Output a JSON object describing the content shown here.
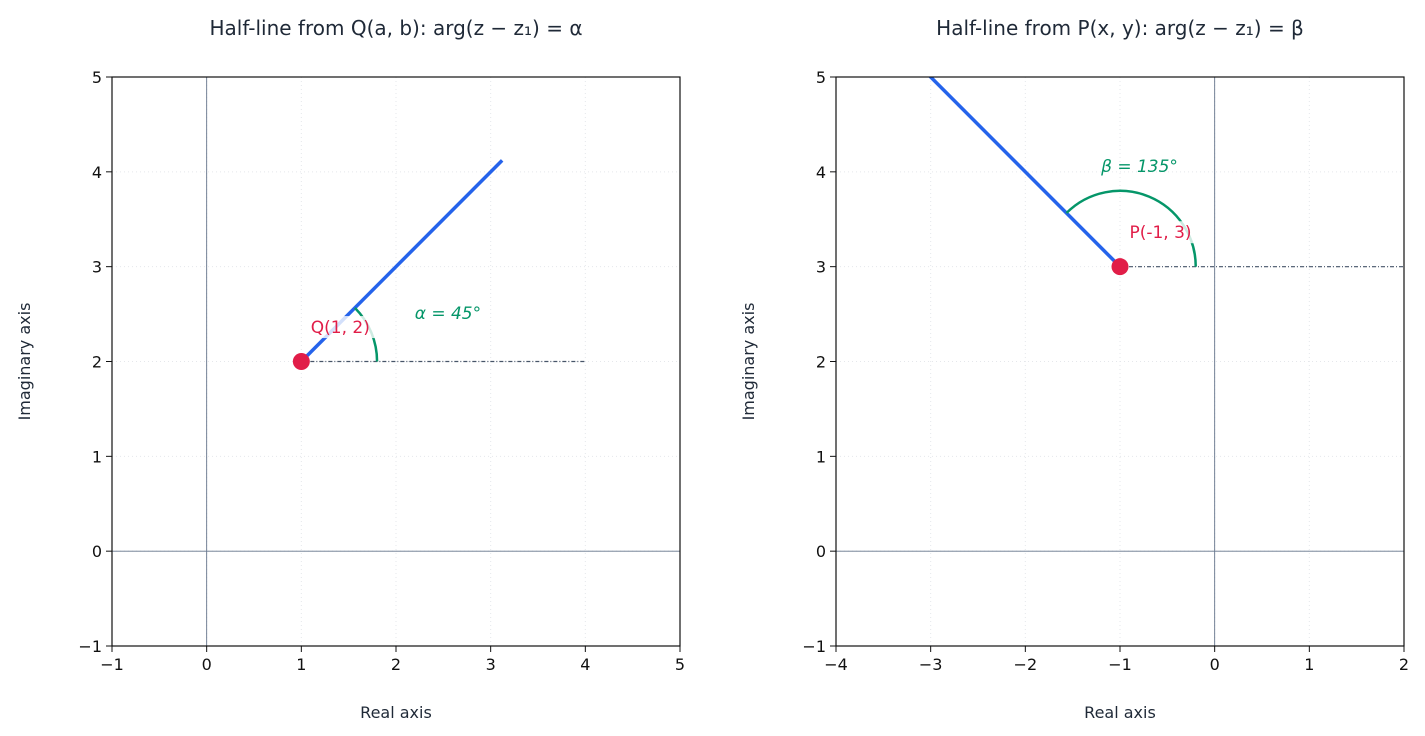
{
  "colors": {
    "ray": "#2563eb",
    "point": "#e11d48",
    "angle": "#059669",
    "ref": "#475569",
    "axis": "#64748b",
    "title": "#1f2937"
  },
  "chart_data": [
    {
      "type": "line",
      "title": "Half-line from Q(a, b): arg(z − z₁) = α",
      "xlabel": "Real axis",
      "ylabel": "Imaginary axis",
      "xlim": [
        -1,
        5
      ],
      "ylim": [
        -1,
        5
      ],
      "xticks": [
        "−1",
        "0",
        "1",
        "2",
        "3",
        "4",
        "5"
      ],
      "yticks": [
        "−1",
        "0",
        "1",
        "2",
        "3",
        "4",
        "5"
      ],
      "grid": true,
      "point": {
        "x": 1,
        "y": 2,
        "label": "Q(1, 2)"
      },
      "ray": {
        "angle_deg": 45,
        "length": 3
      },
      "reference_line": {
        "x": [
          1,
          4
        ],
        "y": 2
      },
      "arc_radius": 0.8,
      "angle_label": "α = 45°"
    },
    {
      "type": "line",
      "title": "Half-line from P(x, y): arg(z − z₁) = β",
      "xlabel": "Real axis",
      "ylabel": "Imaginary axis",
      "xlim": [
        -4,
        2
      ],
      "ylim": [
        -1,
        5
      ],
      "xticks": [
        "−4",
        "−3",
        "−2",
        "−1",
        "0",
        "1",
        "2"
      ],
      "yticks": [
        "−1",
        "0",
        "1",
        "2",
        "3",
        "4",
        "5"
      ],
      "grid": true,
      "point": {
        "x": -1,
        "y": 3,
        "label": "P(-1, 3)"
      },
      "ray": {
        "angle_deg": 135,
        "length": 3
      },
      "reference_line": {
        "x": [
          -1,
          2
        ],
        "y": 3
      },
      "arc_radius": 0.8,
      "angle_label": "β = 135°"
    }
  ]
}
